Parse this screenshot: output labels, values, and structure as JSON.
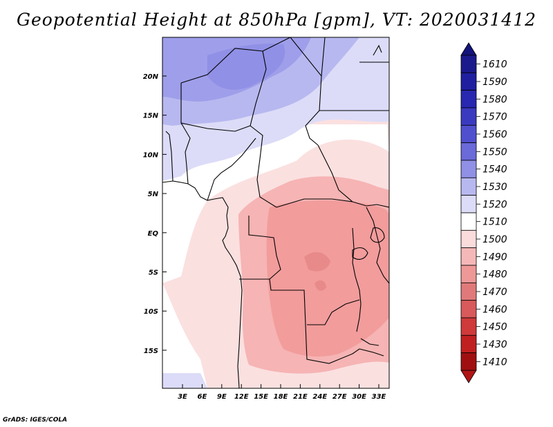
{
  "title": "Geopotential Height at 850hPa [gpm], VT: 2020031412",
  "credit": "GrADS: IGES/COLA",
  "map": {
    "lat_labels": [
      "20N",
      "15N",
      "10N",
      "5N",
      "EQ",
      "5S",
      "10S",
      "15S"
    ],
    "lon_labels": [
      "3E",
      "6E",
      "9E",
      "12E",
      "15E",
      "18E",
      "21E",
      "24E",
      "27E",
      "30E",
      "33E"
    ]
  },
  "colorbar": {
    "levels": [
      "1610",
      "1590",
      "1580",
      "1570",
      "1560",
      "1550",
      "1540",
      "1530",
      "1520",
      "1510",
      "1500",
      "1490",
      "1480",
      "1470",
      "1460",
      "1450",
      "1430",
      "1410"
    ],
    "colors": [
      "#1a1a8c",
      "#1f1fa0",
      "#2828b0",
      "#3a3ac0",
      "#5050cf",
      "#6a6ad9",
      "#9090e6",
      "#b8b8f0",
      "#dcdcf8",
      "#ffffff",
      "#fadcdc",
      "#f5b8b8",
      "#ee9898",
      "#e07a7a",
      "#d85a5a",
      "#cf3a3a",
      "#c02020",
      "#a01010"
    ],
    "top_arrow_color": "#13137a",
    "bottom_arrow_color": "#b01515"
  }
}
